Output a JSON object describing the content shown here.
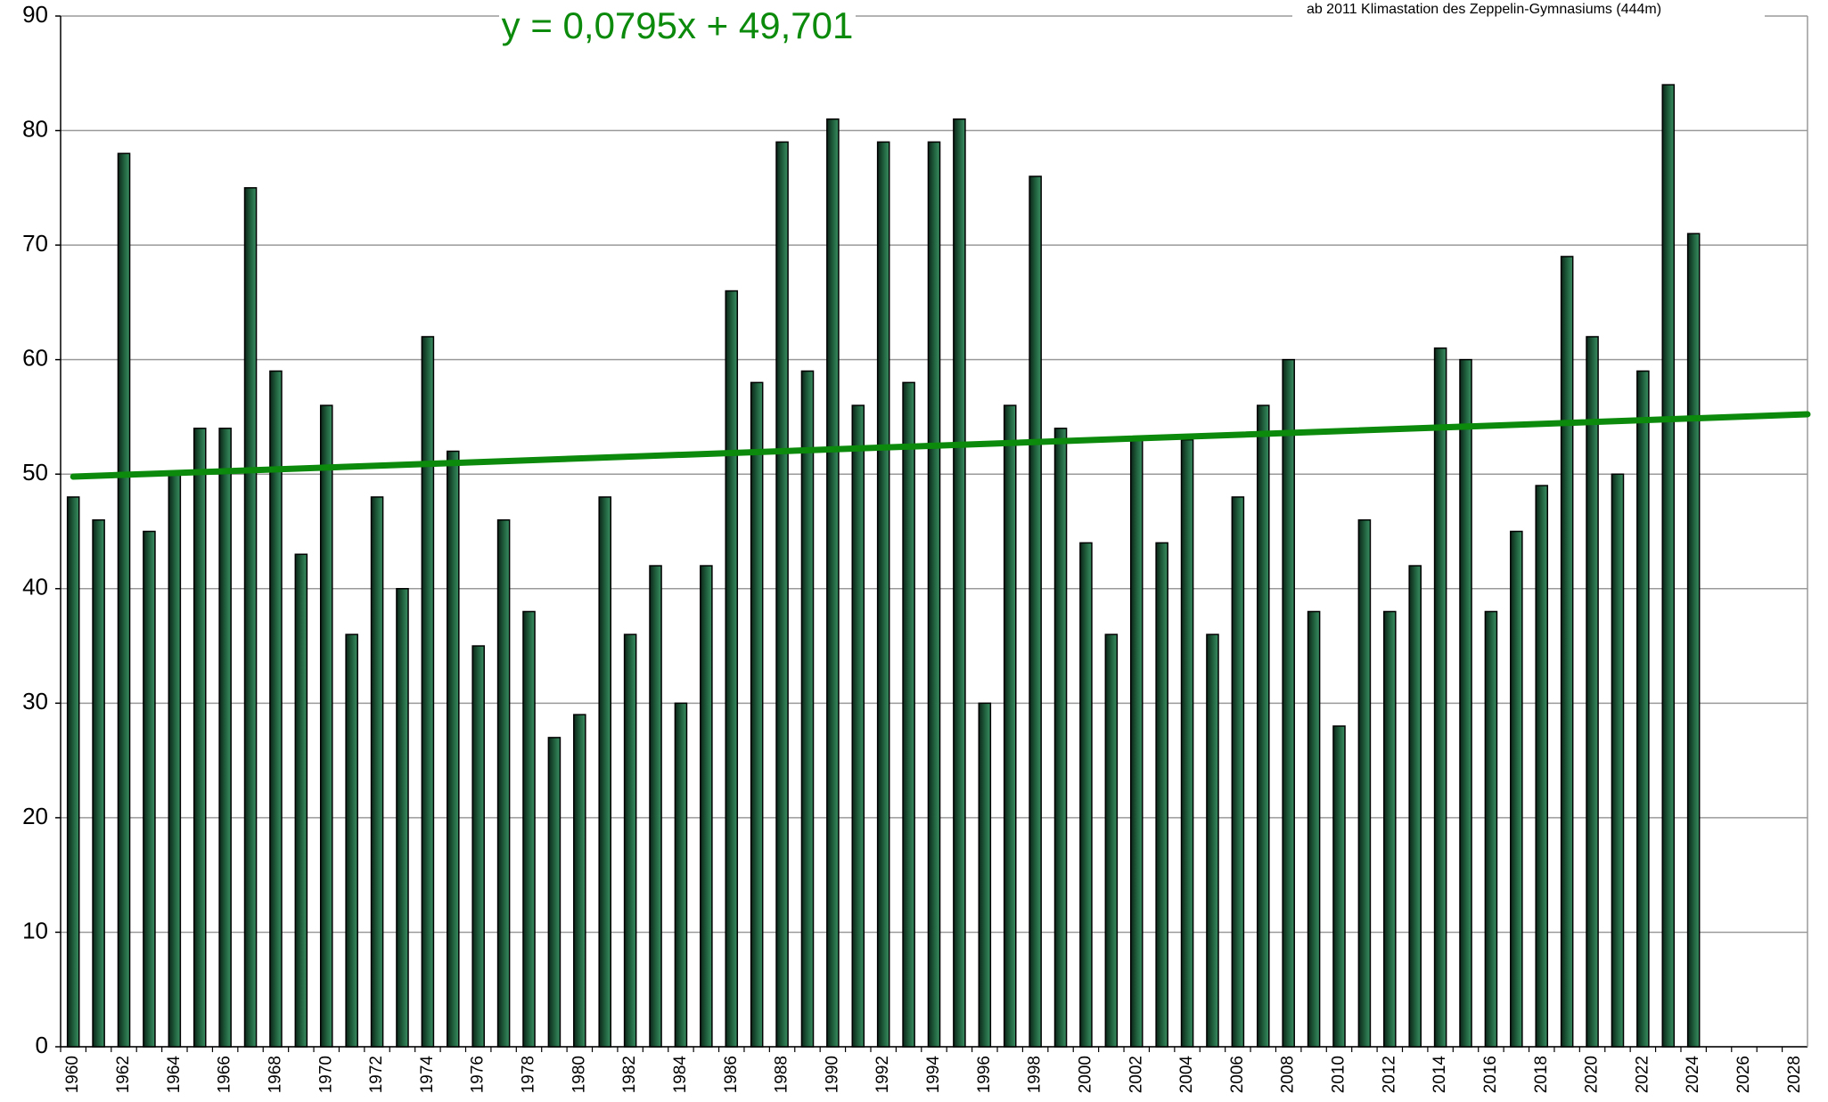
{
  "chart_data": {
    "type": "bar",
    "subtitle": "ab 2011 Klimastation des Zeppelin-Gymnasiums (444m)",
    "categories": [
      "1960",
      null,
      "1962",
      null,
      "1964",
      null,
      "1966",
      null,
      "1968",
      null,
      "1970",
      null,
      "1972",
      null,
      "1974",
      null,
      "1976",
      null,
      "1978",
      null,
      "1980",
      null,
      "1982",
      null,
      "1984",
      null,
      "1986",
      null,
      "1988",
      null,
      "1990",
      null,
      "1992",
      null,
      "1994",
      null,
      "1996",
      null,
      "1998",
      null,
      "2000",
      null,
      "2002",
      null,
      "2004",
      null,
      "2006",
      null,
      "2008",
      null,
      "2010",
      null,
      "2012",
      null,
      "2014",
      null,
      "2016",
      null,
      "2018",
      null,
      "2020",
      null,
      "2022",
      null,
      "2024",
      null,
      "2026",
      null,
      "2028"
    ],
    "values": [
      48,
      46,
      78,
      45,
      50,
      54,
      54,
      75,
      59,
      43,
      56,
      36,
      48,
      40,
      62,
      52,
      35,
      46,
      38,
      27,
      29,
      48,
      36,
      42,
      30,
      42,
      66,
      58,
      79,
      59,
      81,
      56,
      79,
      58,
      79,
      81,
      30,
      56,
      76,
      54,
      44,
      36,
      53,
      44,
      53,
      36,
      48,
      56,
      60,
      38,
      28,
      46,
      38,
      42,
      61,
      60,
      38,
      45,
      49,
      69,
      62,
      50,
      59,
      84,
      71,
      null,
      null,
      null,
      null
    ],
    "color": "#1f5e3c",
    "trendline": {
      "label": "y = 0,0795x + 49,701",
      "slope": 0.0795,
      "intercept": 49.701,
      "color": "#0b8a0b"
    },
    "ylim": [
      0,
      90
    ],
    "yticks": [
      0,
      10,
      20,
      30,
      40,
      50,
      60,
      70,
      80,
      90
    ],
    "grid": true
  }
}
